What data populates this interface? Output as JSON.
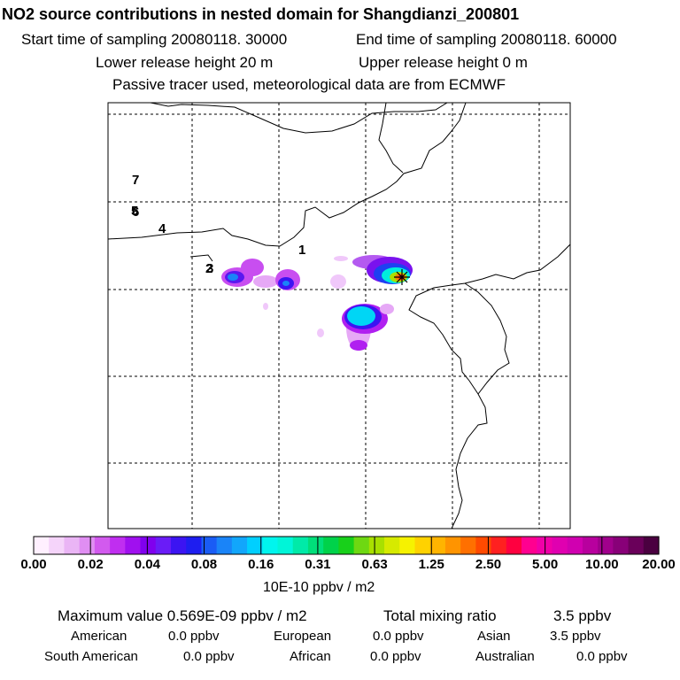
{
  "header": {
    "title": "NO2 source contributions in nested domain for Shangdianzi_200801",
    "start_label": "Start time of sampling 20080118. 30000",
    "end_label": "End time of sampling 20080118. 60000",
    "lower_label": "Lower release height   20 m",
    "upper_label": "Upper release height    0 m",
    "tracer_label": "Passive tracer used, meteorological data are from ECMWF"
  },
  "chart_data": {
    "type": "heatmap",
    "title": "NO2 source contributions in nested domain for Shangdianzi_200801",
    "site_labels": [
      "1",
      "2",
      "3",
      "4",
      "5",
      "6",
      "7"
    ],
    "receptor_marker": "star",
    "grid": true,
    "colorbar": {
      "ticks": [
        "0.00",
        "0.02",
        "0.04",
        "0.08",
        "0.16",
        "0.31",
        "0.63",
        "1.25",
        "2.50",
        "5.00",
        "10.00",
        "20.00"
      ],
      "unit_label": "10E-10 ppbv / m2",
      "colors": [
        "#fff0ff",
        "#f5d4fa",
        "#eab5f5",
        "#e08ef2",
        "#d25aee",
        "#c02ef0",
        "#a010ef",
        "#8000ee",
        "#6a1cf7",
        "#3c14f2",
        "#1e1ef0",
        "#1a5cf5",
        "#1a84f8",
        "#12a6fb",
        "#00cfff",
        "#00f5ee",
        "#00f5d8",
        "#00eaa8",
        "#00df7a",
        "#00d24a",
        "#18d01a",
        "#6ed812",
        "#a8e000",
        "#d6ea00",
        "#f6f200",
        "#ffd200",
        "#ffb400",
        "#ff9400",
        "#ff7000",
        "#ff4a00",
        "#ff2020",
        "#ff0040",
        "#ff0090",
        "#f000a8",
        "#e000b0",
        "#d000b0",
        "#b8009e",
        "#a0008c",
        "#880078",
        "#6a005a",
        "#4a0040"
      ]
    }
  },
  "summary": {
    "max_label": "Maximum value  0.569E-09 ppbv / m2",
    "total_label": "Total mixing ratio",
    "total_value": "3.5 ppbv",
    "rows": [
      [
        {
          "label": "American",
          "value": "0.0 ppbv"
        },
        {
          "label": "European",
          "value": "0.0 ppbv"
        },
        {
          "label": "Asian",
          "value": "3.5 ppbv"
        }
      ],
      [
        {
          "label": "South American",
          "value": "0.0 ppbv"
        },
        {
          "label": "African",
          "value": "0.0 ppbv"
        },
        {
          "label": "Australian",
          "value": "0.0 ppbv"
        }
      ]
    ]
  }
}
